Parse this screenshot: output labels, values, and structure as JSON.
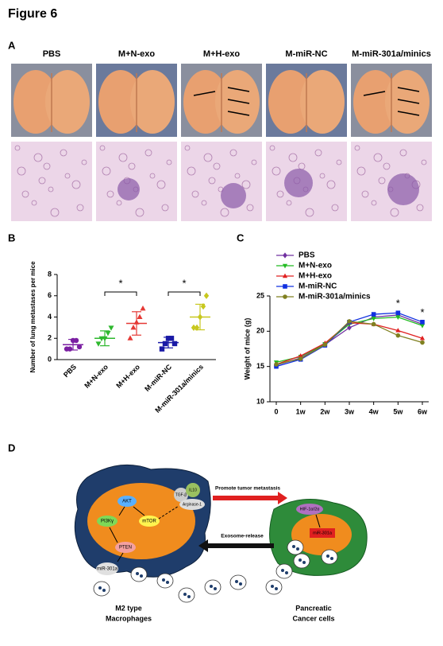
{
  "figure_title": "Figure 6",
  "panel_labels": [
    "A",
    "B",
    "C",
    "D"
  ],
  "panel_a": {
    "columns": [
      "PBS",
      "M+N-exo",
      "M+H-exo",
      "M-miR-NC",
      "M-miR-301a/minics"
    ]
  },
  "chart_data": [
    {
      "type": "dot",
      "ylabel": "Number of lung metastases per mice",
      "categories": [
        "PBS",
        "M+N-exo",
        "M+H-exo",
        "M-miR-NC",
        "M-miR-301a/minics"
      ],
      "colors": [
        "#7b1fa2",
        "#2eb82e",
        "#e53935",
        "#1a1aa6",
        "#c8c81e"
      ],
      "markers": [
        "o",
        "v",
        "^",
        "s",
        "D"
      ],
      "points": [
        [
          1,
          1,
          1.8,
          1.8,
          1.2
        ],
        [
          1.5,
          2,
          2,
          2.5,
          3
        ],
        [
          2,
          3,
          3.5,
          4,
          4.8
        ],
        [
          1,
          1.5,
          2,
          2,
          1.5
        ],
        [
          3,
          3,
          4,
          5,
          6
        ]
      ],
      "mean": [
        1.4,
        2,
        3.4,
        1.6,
        4
      ],
      "sd": [
        0.5,
        0.7,
        1.1,
        0.5,
        1.2
      ],
      "annotations": [
        "*",
        "*"
      ],
      "ylim": [
        0,
        8
      ],
      "yticks": [
        0,
        2,
        4,
        6,
        8
      ]
    },
    {
      "type": "line",
      "ylabel": "Weight of mice (g)",
      "categories": [
        "0",
        "1w",
        "2w",
        "3w",
        "4w",
        "5w",
        "6w"
      ],
      "series": [
        {
          "name": "PBS",
          "color": "#7030a0",
          "marker": "D",
          "values": [
            15.2,
            16.2,
            18.1,
            20.5,
            22.0,
            22.3,
            21.0
          ]
        },
        {
          "name": "M+N-exo",
          "color": "#22bb22",
          "marker": "v",
          "values": [
            15.6,
            16.4,
            18.2,
            21.0,
            21.8,
            22.0,
            20.8
          ]
        },
        {
          "name": "M+H-exo",
          "color": "#e02020",
          "marker": "^",
          "values": [
            15.3,
            16.5,
            18.3,
            21.2,
            21.0,
            20.1,
            19.0
          ]
        },
        {
          "name": "M-miR-NC",
          "color": "#1030e0",
          "marker": "s",
          "values": [
            15.0,
            16.0,
            18.0,
            21.3,
            22.4,
            22.6,
            21.3
          ]
        },
        {
          "name": "M-miR-301a/minics",
          "color": "#808020",
          "marker": "o",
          "values": [
            15.3,
            16.1,
            18.1,
            21.4,
            21.0,
            19.4,
            18.4
          ]
        }
      ],
      "annotations": [
        "*",
        "*"
      ],
      "ylim": [
        10,
        25
      ],
      "yticks": [
        10,
        15,
        20,
        25
      ]
    }
  ],
  "diagram": {
    "macrophage_nodes": [
      "AKT",
      "PI3Kγ",
      "mTOR",
      "PTEN",
      "miR-301a",
      "TGF-β",
      "IL10",
      "Arginase-1"
    ],
    "cancer_nodes": [
      "HIF-1α/2α",
      "miR-301a"
    ],
    "arrows": [
      "Promote tumor metastasis",
      "Exosome-release"
    ],
    "cell_labels": [
      [
        "M2 type",
        "Macrophages"
      ],
      [
        "Pancreatic",
        "Cancer cells"
      ]
    ]
  }
}
